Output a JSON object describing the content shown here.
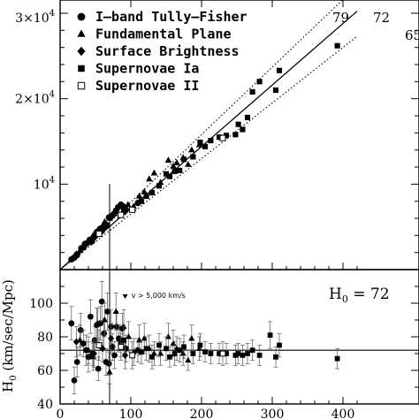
{
  "chart_data": [
    {
      "type": "scatter",
      "panel": "top",
      "xlim": [
        0,
        420
      ],
      "ylim": [
        0,
        30000
      ],
      "y_tick_labels": [
        {
          "value": 10000,
          "base": "10",
          "exp": "4"
        },
        {
          "value": 20000,
          "base": "2×10",
          "exp": "4"
        },
        {
          "value": 30000,
          "base": "3×10",
          "exp": "4"
        }
      ],
      "legend": [
        {
          "marker": "circle",
          "label": "I–band Tully–Fisher"
        },
        {
          "marker": "triangle",
          "label": "Fundamental Plane"
        },
        {
          "marker": "diamond",
          "label": "Surface Brightness"
        },
        {
          "marker": "square",
          "label": "Supernovae Ia"
        },
        {
          "marker": "open-square",
          "label": "Supernovae II"
        }
      ],
      "lines": [
        {
          "label": "79",
          "slope": 79,
          "style": "dotted"
        },
        {
          "label": "72",
          "slope": 72,
          "style": "solid"
        },
        {
          "label": "65",
          "slope": 65,
          "style": "dotted"
        }
      ],
      "vertical_line_x": 70,
      "series": [
        {
          "marker": "circle",
          "points": [
            [
              16,
              1200
            ],
            [
              20,
              1400
            ],
            [
              24,
              1700
            ],
            [
              30,
              2500
            ],
            [
              33,
              2600
            ],
            [
              35,
              3000
            ],
            [
              38,
              3100
            ],
            [
              42,
              3500
            ],
            [
              45,
              3300
            ],
            [
              48,
              3800
            ],
            [
              50,
              4100
            ],
            [
              52,
              4400
            ],
            [
              55,
              4200
            ],
            [
              57,
              4800
            ],
            [
              59,
              4500
            ],
            [
              62,
              5000
            ],
            [
              64,
              5300
            ],
            [
              66,
              5200
            ],
            [
              69,
              6100
            ],
            [
              73,
              6300
            ],
            [
              76,
              6500
            ],
            [
              79,
              6900
            ],
            [
              82,
              7300
            ],
            [
              86,
              7600
            ],
            [
              89,
              7400
            ],
            [
              93,
              7000
            ],
            [
              110,
              7800
            ]
          ]
        },
        {
          "marker": "triangle",
          "points": [
            [
              28,
              2200
            ],
            [
              40,
              3200
            ],
            [
              46,
              3900
            ],
            [
              53,
              4600
            ],
            [
              63,
              5600
            ],
            [
              70,
              6000
            ],
            [
              78,
              6800
            ],
            [
              85,
              6300
            ],
            [
              96,
              7600
            ],
            [
              104,
              7400
            ],
            [
              112,
              8600
            ],
            [
              119,
              9100
            ],
            [
              126,
              10600
            ],
            [
              133,
              11300
            ],
            [
              142,
              10200
            ],
            [
              153,
              12800
            ],
            [
              160,
              12100
            ],
            [
              165,
              12500
            ],
            [
              174,
              13100
            ],
            [
              181,
              12300
            ],
            [
              186,
              14000
            ],
            [
              197,
              14600
            ]
          ]
        },
        {
          "marker": "diamond",
          "points": [
            [
              23,
              1800
            ],
            [
              48,
              3700
            ],
            [
              60,
              5000
            ],
            [
              72,
              6100
            ],
            [
              92,
              6800
            ]
          ]
        },
        {
          "marker": "square",
          "points": [
            [
              90,
              6900
            ],
            [
              115,
              8000
            ],
            [
              122,
              8600
            ],
            [
              130,
              9000
            ],
            [
              140,
              9800
            ],
            [
              150,
              11200
            ],
            [
              155,
              10900
            ],
            [
              162,
              11500
            ],
            [
              169,
              11600
            ],
            [
              175,
              12900
            ],
            [
              188,
              13200
            ],
            [
              198,
              14900
            ],
            [
              205,
              14400
            ],
            [
              213,
              15100
            ],
            [
              225,
              15500
            ],
            [
              235,
              15700
            ],
            [
              248,
              15800
            ],
            [
              252,
              17000
            ],
            [
              258,
              16400
            ],
            [
              265,
              17800
            ],
            [
              272,
              20800
            ],
            [
              282,
              22000
            ],
            [
              305,
              21000
            ],
            [
              310,
              23300
            ],
            [
              392,
              26200
            ]
          ]
        },
        {
          "marker": "open-square",
          "points": [
            [
              55,
              4200
            ],
            [
              86,
              6400
            ],
            [
              102,
              7000
            ],
            [
              230,
              15400
            ]
          ]
        }
      ]
    },
    {
      "type": "scatter",
      "panel": "bottom",
      "xlim": [
        0,
        420
      ],
      "ylim": [
        40,
        120
      ],
      "x_ticks": [
        0,
        100,
        200,
        300,
        400
      ],
      "y_ticks": [
        40,
        60,
        80,
        100
      ],
      "ylabel": "H0 (km/sec/Mpc)",
      "hline": 72,
      "vertical_line_x": 70,
      "annotation": "v > 5,000 km/s",
      "h0_label": {
        "base": "H",
        "sub": "0",
        "rest": " = 72"
      },
      "series": [
        {
          "marker": "circle",
          "points": [
            [
              16,
              88,
              10
            ],
            [
              20,
              54,
              8
            ],
            [
              24,
              65,
              9
            ],
            [
              29,
              84,
              10
            ],
            [
              33,
              76,
              8
            ],
            [
              37,
              72,
              9
            ],
            [
              40,
              68,
              9
            ],
            [
              43,
              92,
              10
            ],
            [
              46,
              70,
              7
            ],
            [
              49,
              78,
              8
            ],
            [
              52,
              87,
              10
            ],
            [
              54,
              61,
              7
            ],
            [
              57,
              88,
              10
            ],
            [
              59,
              101,
              12
            ],
            [
              62,
              82,
              9
            ],
            [
              65,
              65,
              8
            ],
            [
              67,
              95,
              11
            ],
            [
              69,
              64,
              7
            ],
            [
              72,
              86,
              10
            ],
            [
              74,
              74,
              8
            ],
            [
              77,
              69,
              8
            ],
            [
              80,
              86,
              9
            ],
            [
              83,
              79,
              8
            ],
            [
              86,
              76,
              8
            ],
            [
              88,
              85,
              9
            ],
            [
              93,
              73,
              8
            ],
            [
              110,
              72,
              7
            ]
          ]
        },
        {
          "marker": "triangle",
          "points": [
            [
              28,
              78,
              9
            ],
            [
              40,
              72,
              8
            ],
            [
              47,
              68,
              8
            ],
            [
              53,
              88,
              9
            ],
            [
              63,
              90,
              10
            ],
            [
              70,
              59,
              7
            ],
            [
              79,
              95,
              11
            ],
            [
              90,
              86,
              10
            ],
            [
              97,
              80,
              9
            ],
            [
              104,
              71,
              8
            ],
            [
              112,
              78,
              9
            ],
            [
              119,
              79,
              9
            ],
            [
              126,
              73,
              8
            ],
            [
              133,
              70,
              7
            ],
            [
              142,
              70,
              7
            ],
            [
              153,
              80,
              8
            ],
            [
              160,
              76,
              8
            ],
            [
              165,
              73,
              7
            ],
            [
              174,
              70,
              7
            ],
            [
              181,
              66,
              6
            ],
            [
              186,
              79,
              8
            ],
            [
              197,
              73,
              7
            ]
          ]
        },
        {
          "marker": "diamond",
          "points": [
            [
              23,
              77,
              9
            ],
            [
              48,
              70,
              8
            ],
            [
              60,
              73,
              8
            ],
            [
              72,
              79,
              9
            ],
            [
              92,
              69,
              8
            ]
          ]
        },
        {
          "marker": "square",
          "points": [
            [
              90,
              78,
              8
            ],
            [
              115,
              71,
              7
            ],
            [
              122,
              73,
              7
            ],
            [
              130,
              68,
              7
            ],
            [
              140,
              75,
              7
            ],
            [
              150,
              73,
              7
            ],
            [
              155,
              68,
              6
            ],
            [
              162,
              70,
              7
            ],
            [
              169,
              72,
              7
            ],
            [
              175,
              74,
              7
            ],
            [
              188,
              70,
              6
            ],
            [
              198,
              75,
              7
            ],
            [
              205,
              71,
              6
            ],
            [
              213,
              70,
              6
            ],
            [
              225,
              70,
              6
            ],
            [
              235,
              70,
              6
            ],
            [
              248,
              69,
              6
            ],
            [
              252,
              70,
              6
            ],
            [
              258,
              69,
              6
            ],
            [
              265,
              70,
              6
            ],
            [
              272,
              72,
              6
            ],
            [
              282,
              69,
              6
            ],
            [
              297,
              81,
              8
            ],
            [
              305,
              68,
              6
            ],
            [
              310,
              75,
              7
            ],
            [
              392,
              67,
              6
            ]
          ]
        },
        {
          "marker": "open-square",
          "points": [
            [
              55,
              75,
              9
            ],
            [
              86,
              74,
              8
            ],
            [
              102,
              69,
              8
            ],
            [
              230,
              70,
              7
            ]
          ]
        }
      ]
    }
  ]
}
